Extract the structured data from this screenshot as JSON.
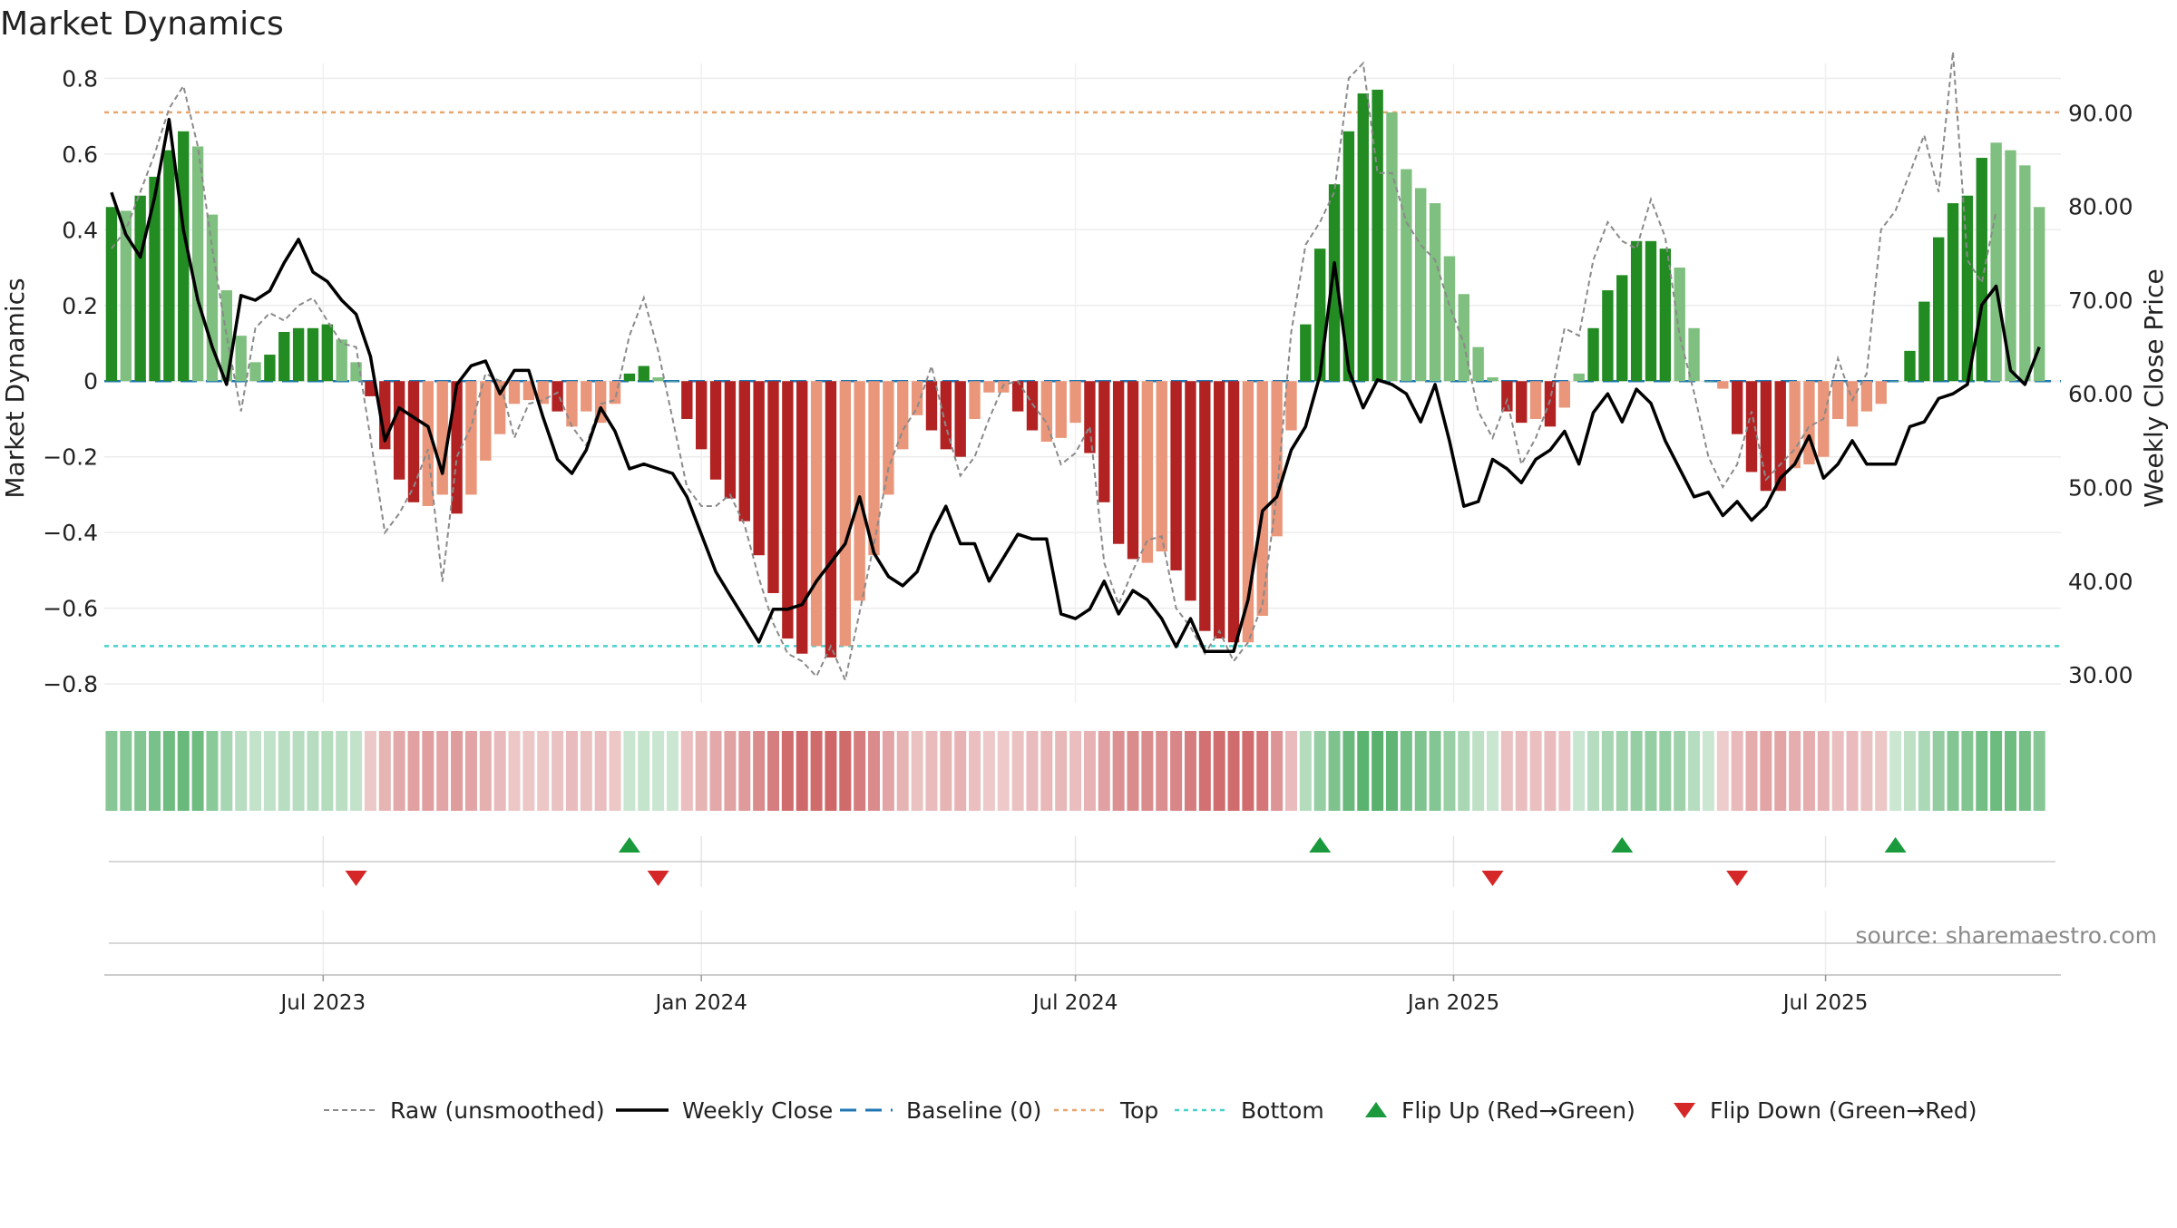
{
  "chart_data": {
    "type": "bar",
    "title": "Market Dynamics",
    "ylabel": "Market Dynamics",
    "y2label": "Weekly Close Price",
    "ylim": [
      -0.85,
      0.82
    ],
    "y2lim": [
      27.0,
      94.5
    ],
    "yticks": [
      "0.8",
      "0.6",
      "0.4",
      "0.2",
      "0",
      "−0.2",
      "−0.4",
      "−0.6",
      "−0.8"
    ],
    "y2ticks": [
      "90.00",
      "80.00",
      "70.00",
      "60.00",
      "50.00",
      "40.00",
      "30.00"
    ],
    "x_start": "2023-03-20",
    "x_interval_days": 7,
    "x_end": "2025-10-20",
    "xticks": [
      {
        "date": "2023-07-01",
        "label": "Jul 2023"
      },
      {
        "date": "2024-01-01",
        "label": "Jan 2024"
      },
      {
        "date": "2024-07-01",
        "label": "Jul 2024"
      },
      {
        "date": "2025-01-01",
        "label": "Jan 2025"
      },
      {
        "date": "2025-07-01",
        "label": "Jul 2025"
      }
    ],
    "top_level": 0.71,
    "bottom_level": -0.7,
    "baseline_level": 0,
    "grid": true,
    "legend_position": "bottom",
    "source": "source: sharemaestro.com",
    "legend": [
      {
        "key": "raw",
        "label": "Raw (unsmoothed)"
      },
      {
        "key": "close",
        "label": "Weekly Close"
      },
      {
        "key": "baseline",
        "label": "Baseline (0)"
      },
      {
        "key": "top",
        "label": "Top"
      },
      {
        "key": "bottom",
        "label": "Bottom"
      },
      {
        "key": "flip_up",
        "label": "Flip Up (Red→Green)"
      },
      {
        "key": "flip_down",
        "label": "Flip Down (Green→Red)"
      }
    ],
    "colors": {
      "green_dark": "#228b22",
      "green_light": "#7fbf7f",
      "red_dark": "#b22222",
      "red_light": "#e9967a",
      "close_line": "#000000",
      "raw_line": "#8a8a8a",
      "baseline": "#1f77b4",
      "top": "#e8a66f",
      "bottom": "#48d1cc",
      "flip_up": "#1a9a3c",
      "flip_down": "#d62728"
    },
    "flip_up_dates": [
      "2023-11-27",
      "2024-10-28",
      "2025-03-24",
      "2025-08-04"
    ],
    "flip_down_dates": [
      "2023-07-17",
      "2023-12-11",
      "2025-01-20",
      "2025-05-19"
    ],
    "series": [
      {
        "name": "Market Dynamics",
        "values": [
          0.46,
          0.45,
          0.49,
          0.54,
          0.61,
          0.66,
          0.62,
          0.44,
          0.24,
          0.12,
          0.05,
          0.07,
          0.13,
          0.14,
          0.14,
          0.15,
          0.11,
          0.05,
          -0.04,
          -0.18,
          -0.26,
          -0.32,
          -0.33,
          -0.3,
          -0.35,
          -0.3,
          -0.21,
          -0.14,
          -0.06,
          -0.05,
          -0.06,
          -0.08,
          -0.12,
          -0.08,
          -0.11,
          -0.06,
          0.02,
          0.04,
          0.01,
          0,
          -0.1,
          -0.18,
          -0.26,
          -0.31,
          -0.37,
          -0.46,
          -0.56,
          -0.68,
          -0.72,
          -0.7,
          -0.73,
          -0.7,
          -0.58,
          -0.46,
          -0.3,
          -0.18,
          -0.09,
          -0.13,
          -0.18,
          -0.2,
          -0.1,
          -0.03,
          -0.03,
          -0.08,
          -0.13,
          -0.16,
          -0.15,
          -0.11,
          -0.19,
          -0.32,
          -0.43,
          -0.47,
          -0.48,
          -0.45,
          -0.5,
          -0.58,
          -0.66,
          -0.68,
          -0.69,
          -0.69,
          -0.62,
          -0.41,
          -0.13,
          0.15,
          0.35,
          0.52,
          0.66,
          0.76,
          0.77,
          0.71,
          0.56,
          0.51,
          0.47,
          0.33,
          0.23,
          0.09,
          0.01,
          -0.08,
          -0.11,
          -0.1,
          -0.12,
          -0.07,
          0.02,
          0.14,
          0.24,
          0.28,
          0.37,
          0.37,
          0.35,
          0.3,
          0.14,
          0,
          -0.02,
          -0.14,
          -0.24,
          -0.29,
          -0.29,
          -0.23,
          -0.22,
          -0.2,
          -0.1,
          -0.12,
          -0.08,
          -0.06,
          0,
          0.08,
          0.21,
          0.38,
          0.47,
          0.49,
          0.59,
          0.63,
          0.61,
          0.57,
          0.46
        ],
        "mark_shades": [
          "dark",
          "light",
          "dark",
          "dark",
          "dark",
          "dark",
          "light",
          "light",
          "light",
          "light",
          "light",
          "dark",
          "dark",
          "dark",
          "dark",
          "dark",
          "light",
          "light",
          "dark",
          "dark",
          "dark",
          "dark",
          "light",
          "light",
          "dark",
          "light",
          "light",
          "light",
          "light",
          "light",
          "light",
          "dark",
          "light",
          "light",
          "light",
          "light",
          "dark",
          "dark",
          "light",
          "light",
          "dark",
          "dark",
          "dark",
          "dark",
          "dark",
          "dark",
          "dark",
          "dark",
          "dark",
          "light",
          "dark",
          "light",
          "light",
          "light",
          "light",
          "light",
          "light",
          "dark",
          "dark",
          "dark",
          "light",
          "light",
          "light",
          "dark",
          "dark",
          "light",
          "light",
          "light",
          "dark",
          "dark",
          "dark",
          "dark",
          "light",
          "light",
          "dark",
          "dark",
          "dark",
          "dark",
          "dark",
          "light",
          "light",
          "light",
          "light",
          "dark",
          "dark",
          "dark",
          "dark",
          "dark",
          "dark",
          "light",
          "light",
          "light",
          "light",
          "light",
          "light",
          "light",
          "light",
          "dark",
          "dark",
          "light",
          "dark",
          "light",
          "light",
          "dark",
          "dark",
          "dark",
          "dark",
          "dark",
          "dark",
          "light",
          "light",
          "light",
          "light",
          "dark",
          "dark",
          "dark",
          "dark",
          "light",
          "light",
          "light",
          "light",
          "light",
          "light",
          "light",
          "light",
          "dark",
          "dark",
          "dark",
          "dark",
          "dark",
          "dark",
          "light",
          "light",
          "light"
        ]
      },
      {
        "name": "Raw (unsmoothed)",
        "values": [
          0.35,
          0.4,
          0.5,
          0.6,
          0.72,
          0.78,
          0.62,
          0.35,
          0.12,
          -0.08,
          0.14,
          0.18,
          0.16,
          0.2,
          0.22,
          0.16,
          0.1,
          0.09,
          -0.15,
          -0.4,
          -0.35,
          -0.28,
          -0.18,
          -0.53,
          -0.2,
          -0.12,
          0.02,
          0.0,
          -0.15,
          -0.06,
          -0.05,
          -0.03,
          -0.12,
          -0.17,
          -0.06,
          -0.05,
          0.12,
          0.22,
          0.08,
          -0.1,
          -0.28,
          -0.33,
          -0.33,
          -0.3,
          -0.38,
          -0.52,
          -0.64,
          -0.72,
          -0.74,
          -0.78,
          -0.7,
          -0.79,
          -0.61,
          -0.43,
          -0.23,
          -0.13,
          -0.07,
          0.04,
          -0.12,
          -0.25,
          -0.2,
          -0.1,
          -0.01,
          0.0,
          -0.06,
          -0.11,
          -0.22,
          -0.19,
          -0.12,
          -0.48,
          -0.59,
          -0.5,
          -0.42,
          -0.41,
          -0.6,
          -0.65,
          -0.72,
          -0.66,
          -0.74,
          -0.69,
          -0.59,
          -0.3,
          0.13,
          0.36,
          0.42,
          0.5,
          0.8,
          0.84,
          0.55,
          0.55,
          0.42,
          0.36,
          0.32,
          0.2,
          0.1,
          -0.08,
          -0.15,
          -0.05,
          -0.22,
          -0.15,
          -0.05,
          0.14,
          0.12,
          0.32,
          0.42,
          0.37,
          0.35,
          0.48,
          0.38,
          0.12,
          -0.03,
          -0.2,
          -0.28,
          -0.22,
          -0.08,
          -0.26,
          -0.22,
          -0.18,
          -0.12,
          -0.1,
          0.06,
          -0.05,
          0.02,
          0.4,
          0.45,
          0.55,
          0.65,
          0.5,
          0.87,
          0.32,
          0.26,
          0.45
        ]
      },
      {
        "name": "Weekly Close",
        "values": [
          81.5,
          77,
          74.6,
          81,
          89.3,
          77.5,
          70,
          65,
          61,
          70.5,
          70,
          71,
          74,
          76.5,
          73,
          72,
          70,
          68.5,
          64,
          55,
          58.5,
          57.5,
          56.5,
          51.5,
          61,
          63,
          63.5,
          60,
          62.5,
          62.5,
          57.5,
          53,
          51.5,
          54,
          58.5,
          56,
          52,
          52.5,
          52,
          51.5,
          49,
          45,
          41,
          38.5,
          36,
          33.5,
          37,
          37,
          37.5,
          40,
          42,
          44,
          49,
          43,
          40.5,
          39.5,
          41,
          45,
          48,
          44,
          44,
          40,
          42.5,
          45,
          44.5,
          44.5,
          36.5,
          36,
          37,
          40,
          36.5,
          39,
          38,
          36,
          33,
          36,
          32.5,
          32.5,
          32.5,
          38,
          47.5,
          49,
          54,
          56.5,
          62,
          74,
          62.5,
          58.5,
          61.5,
          61,
          60,
          57,
          61,
          55,
          48,
          48.5,
          53,
          52,
          50.5,
          53,
          54,
          56,
          52.5,
          58,
          60,
          57,
          60.5,
          59,
          55,
          52,
          49,
          49.5,
          47,
          48.5,
          46.5,
          48,
          51,
          52.5,
          55.5,
          51,
          52.5,
          55,
          52.5,
          52.5,
          52.5,
          56.5,
          57,
          59.5,
          60,
          61,
          69.5,
          71.5,
          62.5,
          61,
          65
        ]
      }
    ]
  }
}
